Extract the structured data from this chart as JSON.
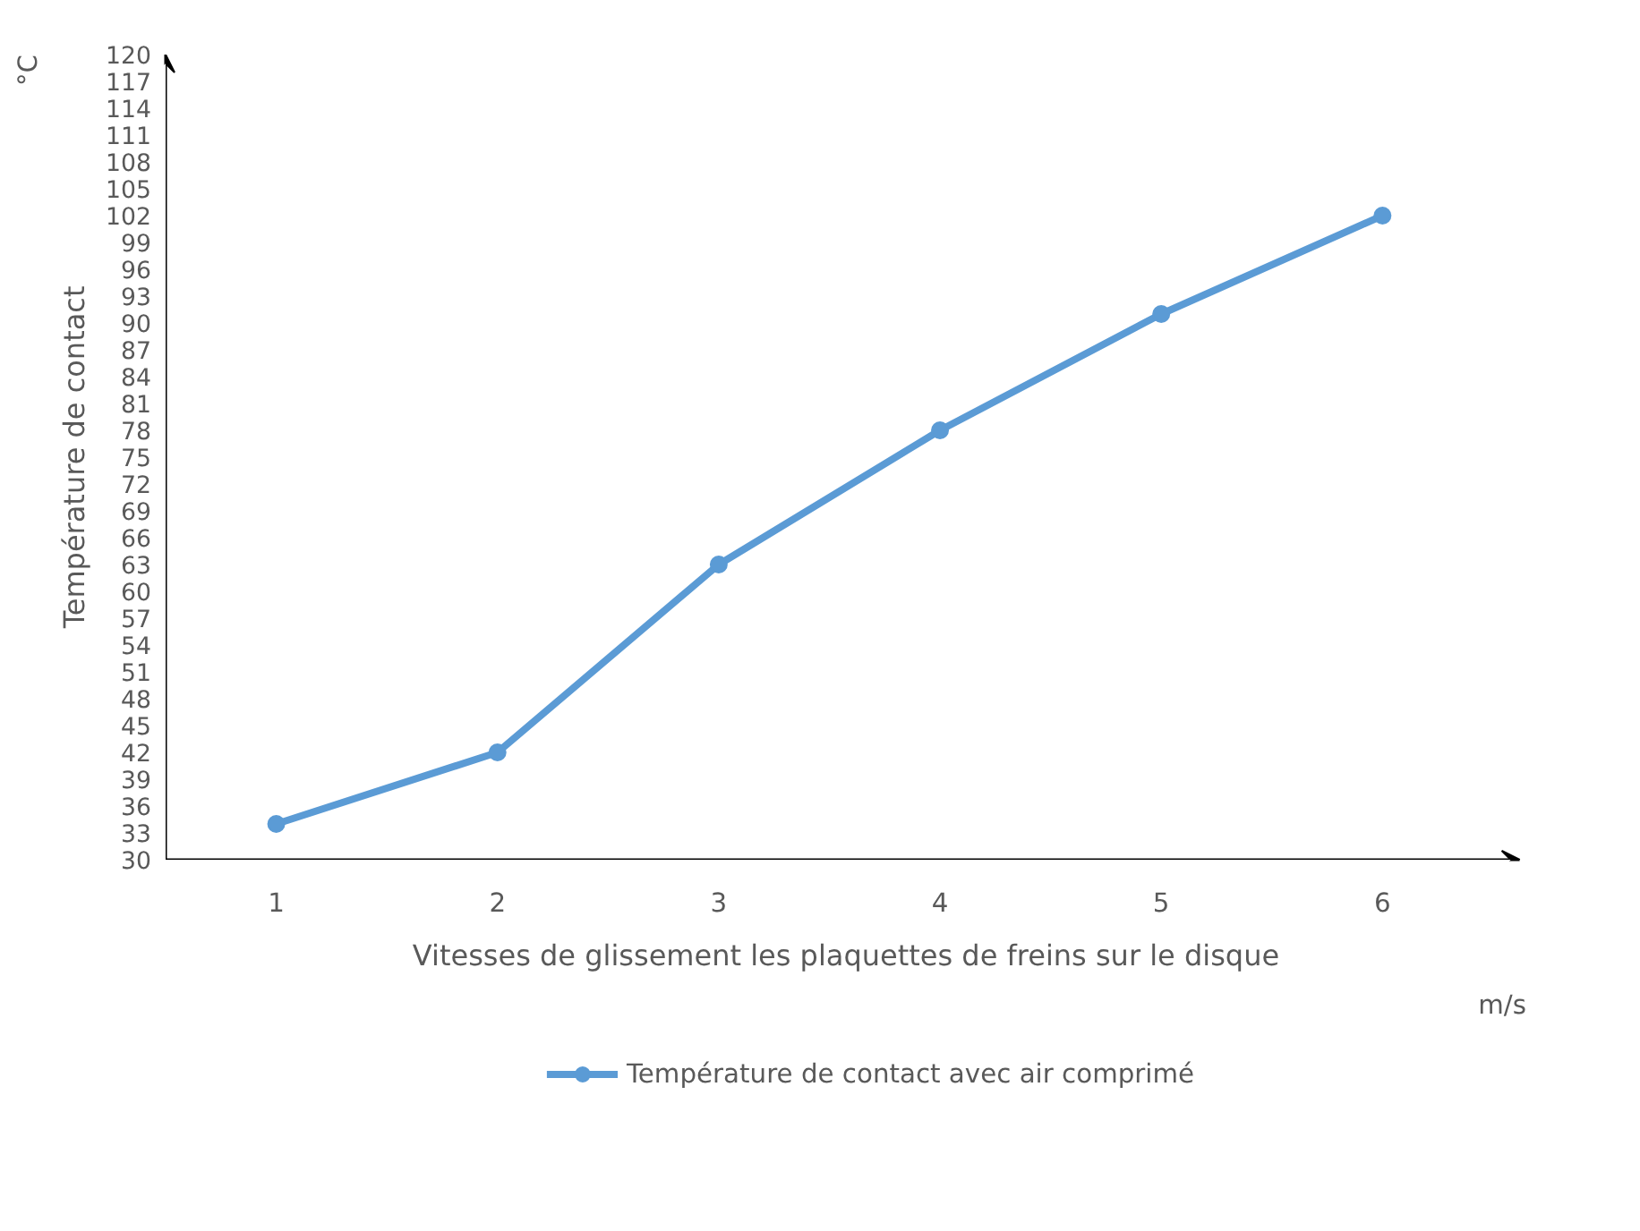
{
  "chart_data": {
    "type": "line",
    "xlabel": "Vitesses de glissement les plaquettes de freins sur le disque",
    "ylabel": "Température de contact",
    "categories": [
      "1",
      "2",
      "3",
      "4",
      "5",
      "6"
    ],
    "series": [
      {
        "name": "Température de contact avec air comprimé",
        "color": "#5b9bd5",
        "values": [
          34,
          42,
          63,
          78,
          91,
          102
        ]
      }
    ],
    "ylim": [
      30,
      120
    ],
    "yticks": [
      30,
      33,
      36,
      39,
      42,
      45,
      48,
      51,
      54,
      57,
      60,
      63,
      66,
      69,
      72,
      75,
      78,
      81,
      84,
      87,
      90,
      93,
      96,
      99,
      102,
      105,
      108,
      111,
      114,
      117,
      120
    ],
    "annotations": [
      "°C",
      "m/s"
    ],
    "grid": false,
    "legend": "bottom",
    "marker": "circle",
    "line_style": "solid"
  }
}
